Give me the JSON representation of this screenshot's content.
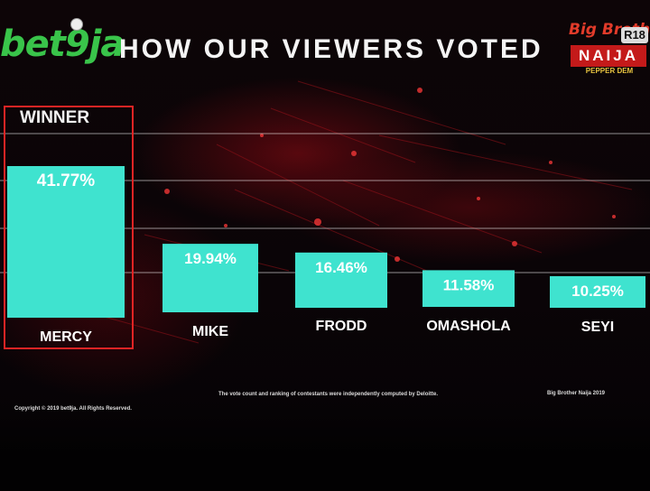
{
  "header": {
    "logo_text": "bet9ja",
    "title": "HOW OUR VIEWERS VOTED",
    "show_logo_top": "Big Brother",
    "show_logo_rating": "R18",
    "show_logo_main": "NAIJA",
    "show_logo_sub": "PEPPER DEM"
  },
  "winner_label": "WINNER",
  "chart_data": {
    "type": "bar",
    "categories": [
      "MERCY",
      "MIKE",
      "FRODD",
      "OMASHOLA",
      "SEYI"
    ],
    "values": [
      41.77,
      19.94,
      16.46,
      11.58,
      10.25
    ],
    "value_labels": [
      "41.77%",
      "19.94%",
      "16.46%",
      "11.58%",
      "10.25%"
    ],
    "title": "HOW OUR VIEWERS VOTED",
    "xlabel": "",
    "ylabel": "",
    "ylim": [
      0,
      50
    ],
    "grid": true,
    "highlight_category": "MERCY",
    "bar_color": "#3fe3cf",
    "highlight_border_color": "#e02424"
  },
  "footer": {
    "copyright": "Copyright © 2019 bet9ja. All Rights Reserved.",
    "disclaimer": "The vote count and ranking of contestants were independently computed by Deloitte.",
    "credit": "Big Brother Naija 2019"
  }
}
